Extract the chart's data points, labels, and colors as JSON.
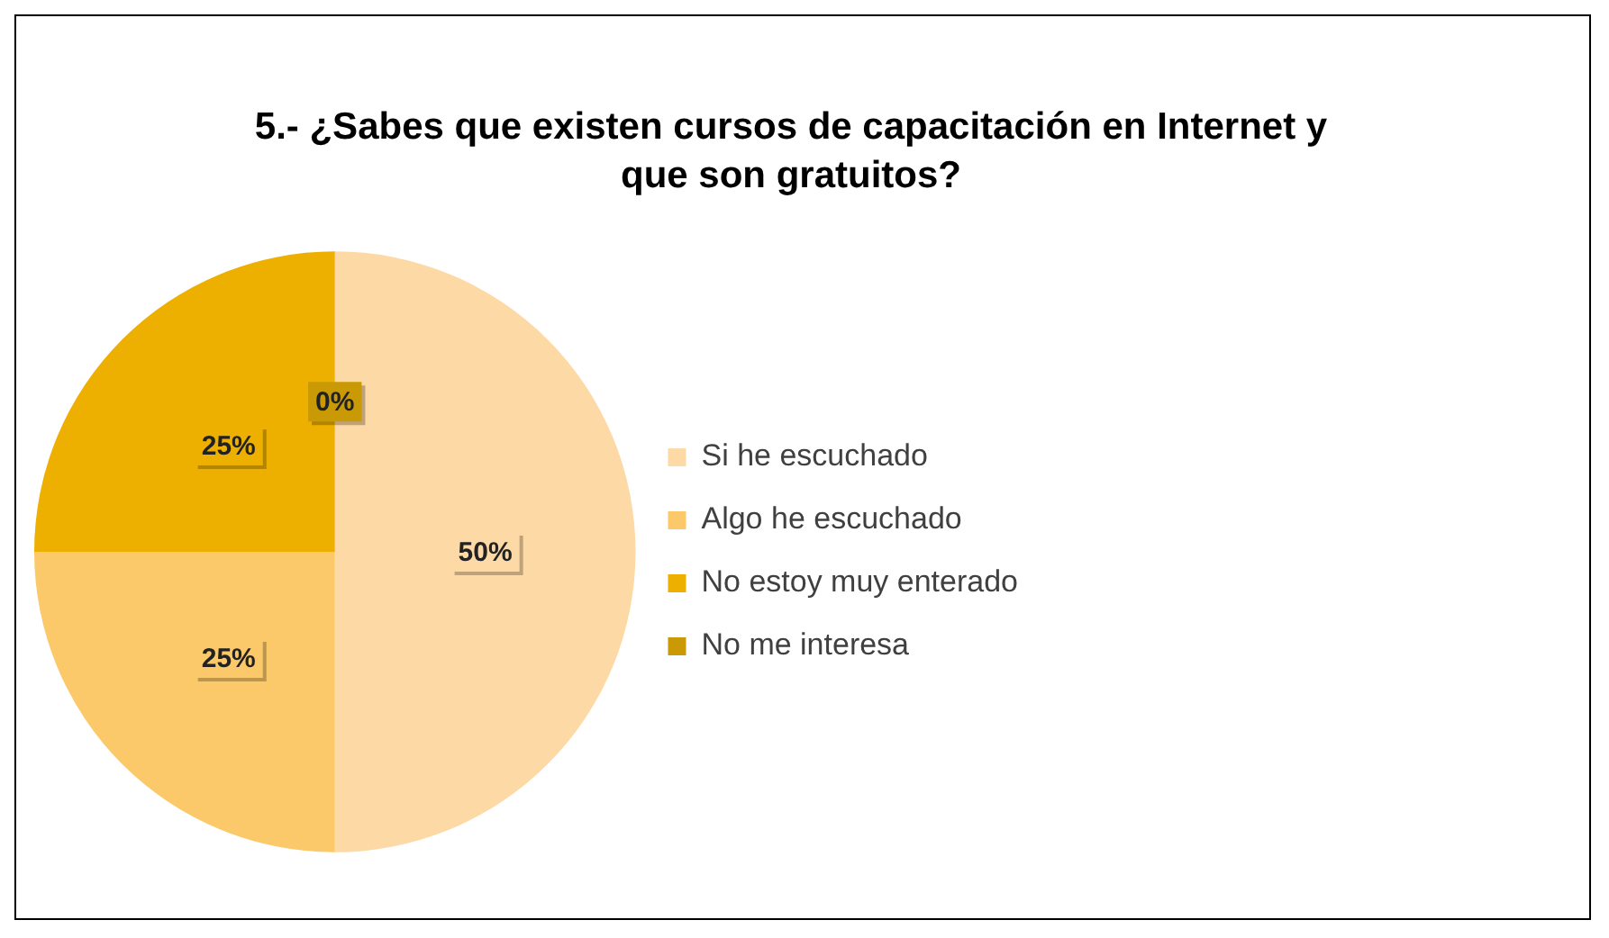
{
  "chart_data": {
    "type": "pie",
    "title": "5.- ¿Sabes que existen cursos de capacitación en Internet y que son gratuitos?",
    "categories": [
      "Si he escuchado",
      "Algo he escuchado",
      "No estoy muy enterado",
      "No me interesa"
    ],
    "values": [
      50,
      25,
      25,
      0
    ],
    "colors": [
      "#fdd9a6",
      "#fbc96a",
      "#eeb000",
      "#c99a06"
    ],
    "value_labels": [
      "50%",
      "25%",
      "25%",
      "0%"
    ],
    "legend": "right"
  }
}
